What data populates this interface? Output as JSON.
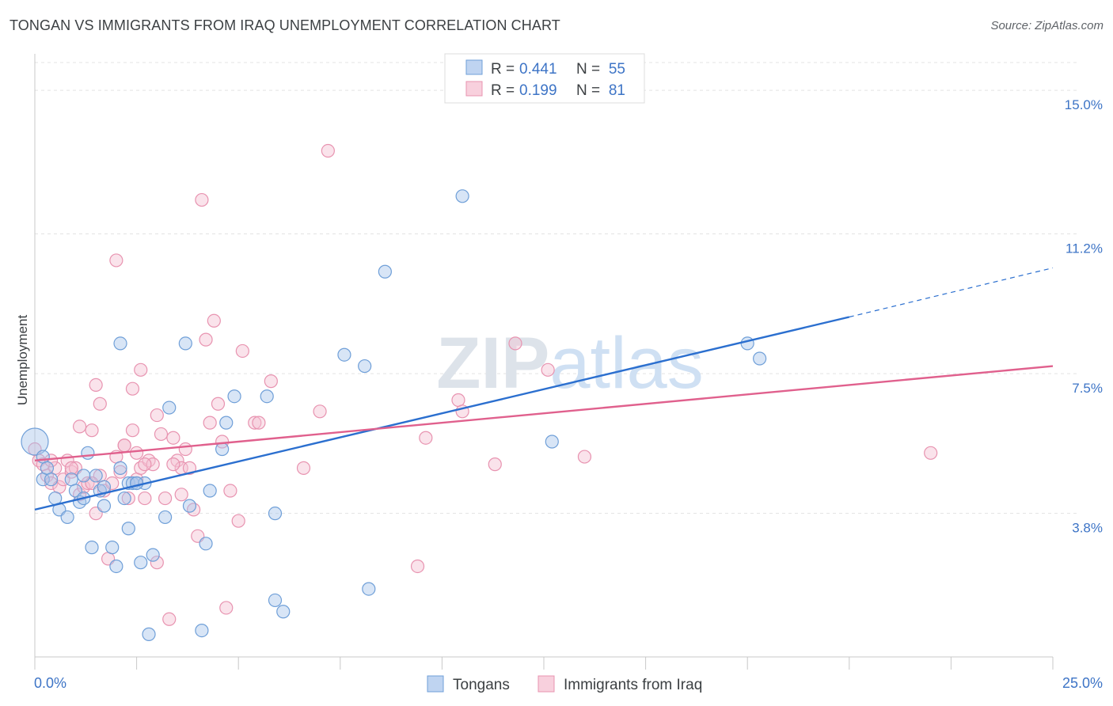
{
  "header": {
    "title": "TONGAN VS IMMIGRANTS FROM IRAQ UNEMPLOYMENT CORRELATION CHART",
    "source": "Source: ZipAtlas.com"
  },
  "watermark": "ZIPatlas",
  "chart_data": {
    "type": "scatter",
    "ylabel": "Unemployment",
    "xlim": [
      0,
      25
    ],
    "ylim": [
      0,
      15.8
    ],
    "x_ticks": [
      0,
      2.5,
      5,
      7.5,
      10,
      12.5,
      15,
      17.5,
      20,
      22.5,
      25
    ],
    "x_tick_labels": [
      {
        "x": 0,
        "label": "0.0%"
      },
      {
        "x": 25,
        "label": "25.0%"
      }
    ],
    "y_ticks": [
      {
        "y": 3.8,
        "label": "3.8%"
      },
      {
        "y": 7.5,
        "label": "7.5%"
      },
      {
        "y": 11.2,
        "label": "11.2%"
      },
      {
        "y": 15.0,
        "label": "15.0%"
      }
    ],
    "grid": true,
    "legend_top": {
      "placement": "top-center",
      "entries": [
        {
          "r_label": "R =",
          "r_value": "0.441",
          "n_label": "N =",
          "n_value": "55"
        },
        {
          "r_label": "R =",
          "r_value": "0.199",
          "n_label": "N =",
          "n_value": "81"
        }
      ]
    },
    "legend_bottom": {
      "placement": "bottom-center"
    },
    "series": [
      {
        "name": "Tongans",
        "color": "#6f9fd8",
        "fill": "#a9c6ec",
        "trend_color": "#2b6fcf",
        "trend": {
          "x0": 0,
          "y0": 3.9,
          "x1": 20,
          "y1": 9.0,
          "dashed_to_x": 25,
          "dashed_to_y": 10.3
        },
        "points": [
          [
            0.0,
            5.7
          ],
          [
            0.2,
            5.3
          ],
          [
            0.2,
            4.7
          ],
          [
            0.3,
            5.0
          ],
          [
            0.4,
            4.7
          ],
          [
            0.5,
            4.2
          ],
          [
            0.6,
            3.9
          ],
          [
            0.8,
            3.7
          ],
          [
            0.9,
            4.7
          ],
          [
            1.0,
            4.4
          ],
          [
            1.1,
            4.1
          ],
          [
            1.2,
            4.2
          ],
          [
            1.5,
            4.8
          ],
          [
            1.3,
            5.4
          ],
          [
            1.6,
            4.4
          ],
          [
            1.7,
            4.5
          ],
          [
            1.4,
            2.9
          ],
          [
            1.9,
            2.9
          ],
          [
            2.0,
            2.4
          ],
          [
            1.7,
            4.0
          ],
          [
            2.1,
            8.3
          ],
          [
            2.1,
            5.0
          ],
          [
            2.2,
            4.2
          ],
          [
            2.3,
            4.6
          ],
          [
            2.3,
            3.4
          ],
          [
            2.4,
            4.6
          ],
          [
            2.5,
            4.6
          ],
          [
            2.6,
            2.5
          ],
          [
            2.7,
            4.6
          ],
          [
            2.8,
            0.6
          ],
          [
            2.9,
            2.7
          ],
          [
            3.2,
            3.7
          ],
          [
            3.3,
            6.6
          ],
          [
            3.7,
            8.3
          ],
          [
            3.8,
            4.0
          ],
          [
            4.1,
            0.7
          ],
          [
            4.2,
            3.0
          ],
          [
            4.3,
            4.4
          ],
          [
            4.6,
            5.5
          ],
          [
            4.7,
            6.2
          ],
          [
            4.9,
            6.9
          ],
          [
            5.7,
            6.9
          ],
          [
            5.9,
            1.5
          ],
          [
            5.9,
            3.8
          ],
          [
            6.1,
            1.2
          ],
          [
            7.6,
            8.0
          ],
          [
            8.1,
            7.7
          ],
          [
            8.2,
            1.8
          ],
          [
            8.6,
            10.2
          ],
          [
            10.5,
            12.2
          ],
          [
            12.7,
            5.7
          ],
          [
            17.5,
            8.3
          ],
          [
            17.8,
            7.9
          ],
          [
            1.2,
            4.8
          ],
          [
            2.5,
            4.6
          ]
        ]
      },
      {
        "name": "Immigrants from Iraq",
        "color": "#e893b0",
        "fill": "#f5c0d2",
        "trend_color": "#e0608d",
        "trend": {
          "x0": 0,
          "y0": 5.2,
          "x1": 25,
          "y1": 7.7
        },
        "points": [
          [
            0.0,
            5.5
          ],
          [
            0.1,
            5.2
          ],
          [
            0.2,
            5.1
          ],
          [
            0.3,
            4.8
          ],
          [
            0.4,
            4.6
          ],
          [
            0.5,
            5.0
          ],
          [
            0.6,
            4.5
          ],
          [
            0.7,
            4.7
          ],
          [
            0.8,
            5.2
          ],
          [
            0.9,
            4.9
          ],
          [
            1.0,
            5.0
          ],
          [
            1.1,
            6.1
          ],
          [
            1.1,
            4.3
          ],
          [
            1.2,
            4.5
          ],
          [
            1.3,
            4.6
          ],
          [
            1.4,
            6.0
          ],
          [
            1.5,
            3.8
          ],
          [
            1.5,
            7.2
          ],
          [
            1.6,
            4.8
          ],
          [
            1.6,
            6.7
          ],
          [
            1.7,
            4.4
          ],
          [
            1.8,
            2.6
          ],
          [
            1.9,
            4.6
          ],
          [
            2.0,
            5.3
          ],
          [
            2.0,
            10.5
          ],
          [
            2.1,
            4.9
          ],
          [
            2.2,
            5.6
          ],
          [
            2.2,
            5.6
          ],
          [
            2.3,
            4.2
          ],
          [
            2.4,
            7.1
          ],
          [
            2.4,
            6.0
          ],
          [
            2.5,
            4.7
          ],
          [
            2.5,
            5.4
          ],
          [
            2.6,
            5.0
          ],
          [
            2.6,
            7.6
          ],
          [
            2.7,
            4.2
          ],
          [
            2.8,
            5.2
          ],
          [
            2.9,
            5.1
          ],
          [
            3.0,
            2.5
          ],
          [
            3.0,
            6.4
          ],
          [
            3.1,
            5.9
          ],
          [
            3.2,
            4.2
          ],
          [
            3.3,
            1.0
          ],
          [
            3.4,
            5.8
          ],
          [
            3.5,
            5.2
          ],
          [
            3.6,
            5.0
          ],
          [
            3.6,
            4.3
          ],
          [
            3.7,
            5.5
          ],
          [
            3.8,
            5.0
          ],
          [
            3.9,
            3.9
          ],
          [
            4.0,
            3.2
          ],
          [
            4.1,
            12.1
          ],
          [
            4.2,
            8.4
          ],
          [
            4.3,
            6.2
          ],
          [
            4.4,
            8.9
          ],
          [
            4.5,
            6.7
          ],
          [
            4.6,
            5.7
          ],
          [
            4.7,
            1.3
          ],
          [
            4.8,
            4.4
          ],
          [
            5.0,
            3.6
          ],
          [
            5.1,
            8.1
          ],
          [
            5.4,
            6.2
          ],
          [
            5.5,
            6.2
          ],
          [
            5.8,
            7.3
          ],
          [
            6.6,
            5.0
          ],
          [
            7.0,
            6.5
          ],
          [
            7.2,
            13.4
          ],
          [
            9.4,
            2.4
          ],
          [
            9.6,
            5.8
          ],
          [
            10.4,
            6.8
          ],
          [
            10.5,
            6.5
          ],
          [
            11.3,
            5.1
          ],
          [
            11.8,
            8.3
          ],
          [
            12.6,
            7.6
          ],
          [
            13.5,
            5.3
          ],
          [
            22.0,
            5.4
          ],
          [
            0.4,
            5.2
          ],
          [
            0.9,
            5.0
          ],
          [
            1.4,
            4.6
          ],
          [
            2.7,
            5.1
          ],
          [
            3.4,
            5.1
          ]
        ]
      }
    ]
  }
}
